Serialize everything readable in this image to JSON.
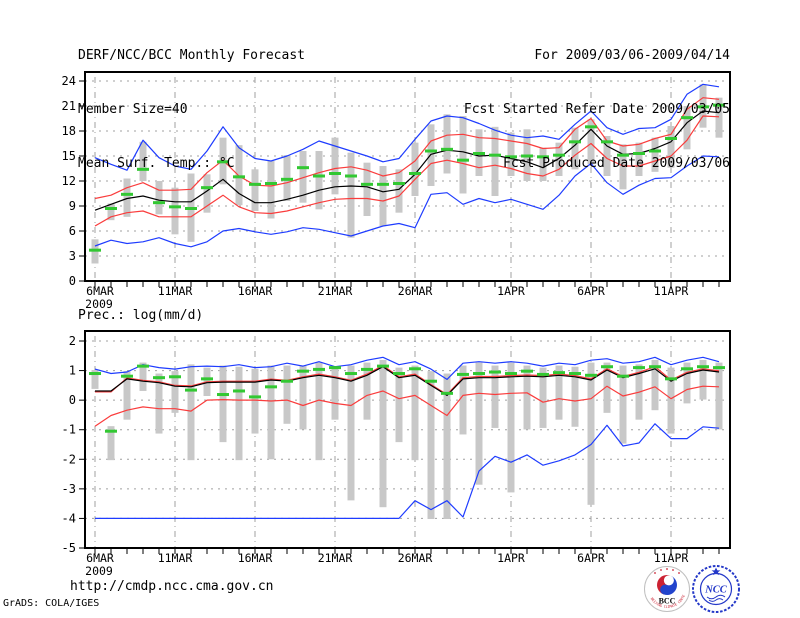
{
  "header": {
    "title": "DERF/NCC/BCC Monthly Forecast",
    "member_size": "Member Size=40",
    "valid_range": "For 2009/03/06-2009/04/14",
    "refer_date": "Fcst Started Refer Date 2009/03/05",
    "produced_date": "Fcst Produced Date 2009/03/06"
  },
  "footer": {
    "url": "http://cmdp.ncc.cma.gov.cn",
    "grads_credit": "GrADS: COLA/IGES",
    "bcc_label": "BCC",
    "bcc_ring_text": "BEIJING CLIMATE CENTER",
    "ncc_label": "NCC"
  },
  "colors": {
    "ensemble_max_min": "#1e3cff",
    "spread_lines": "#fa3c3c",
    "ensemble_mean": "#000000",
    "observation_dash": "#32c832",
    "spread_bar": "#c8c8c8",
    "grid": "#a0a0a0",
    "axis": "#000000",
    "logo_blue": "#2438c8",
    "logo_red": "#cc2233"
  },
  "chart_data": [
    {
      "type": "line",
      "title": "Mean Surf. Temp.: °C",
      "x": [
        "6MAR",
        "7MAR",
        "8MAR",
        "9MAR",
        "10MAR",
        "11MAR",
        "12MAR",
        "13MAR",
        "14MAR",
        "15MAR",
        "16MAR",
        "17MAR",
        "18MAR",
        "19MAR",
        "20MAR",
        "21MAR",
        "22MAR",
        "23MAR",
        "24MAR",
        "25MAR",
        "26MAR",
        "27MAR",
        "28MAR",
        "29MAR",
        "30MAR",
        "31MAR",
        "1APR",
        "2APR",
        "3APR",
        "4APR",
        "5APR",
        "6APR",
        "7APR",
        "8APR",
        "9APR",
        "10APR",
        "11APR",
        "12APR",
        "13APR",
        "14APR"
      ],
      "year_label": "2009",
      "xtick_labels": [
        "6MAR",
        "11MAR",
        "16MAR",
        "21MAR",
        "26MAR",
        "1APR",
        "6APR",
        "11APR"
      ],
      "xtick_indices": [
        0,
        5,
        10,
        15,
        20,
        26,
        31,
        36
      ],
      "ylim": [
        0,
        24
      ],
      "yticks": [
        0,
        3,
        6,
        9,
        12,
        15,
        18,
        21,
        24
      ],
      "grid": true,
      "series": [
        {
          "name": "ensemble-max",
          "color": "#1e3cff",
          "values": [
            14.8,
            14.0,
            13.3,
            16.9,
            14.8,
            13.8,
            13.4,
            15.6,
            18.5,
            16.0,
            14.7,
            14.4,
            15.0,
            15.8,
            16.8,
            16.2,
            15.6,
            15.0,
            14.3,
            14.7,
            17.0,
            19.2,
            19.8,
            19.6,
            18.9,
            18.1,
            17.5,
            17.2,
            17.4,
            17.0,
            18.8,
            20.4,
            18.4,
            17.6,
            18.3,
            18.4,
            19.4,
            22.4,
            23.6,
            23.3
          ]
        },
        {
          "name": "spread-upper",
          "color": "#fa3c3c",
          "values": [
            9.9,
            10.3,
            11.2,
            11.8,
            10.9,
            10.9,
            11.0,
            13.0,
            14.5,
            12.6,
            11.5,
            11.4,
            11.8,
            12.4,
            13.0,
            13.5,
            13.7,
            13.3,
            12.6,
            13.0,
            14.4,
            16.8,
            17.5,
            17.6,
            17.2,
            17.1,
            16.8,
            16.5,
            15.9,
            16.0,
            18.2,
            19.5,
            16.8,
            16.2,
            16.4,
            17.1,
            17.6,
            20.6,
            22.0,
            21.8
          ]
        },
        {
          "name": "spread-lower",
          "color": "#fa3c3c",
          "values": [
            6.6,
            7.7,
            8.2,
            8.4,
            7.7,
            7.7,
            7.7,
            9.0,
            10.3,
            8.9,
            8.2,
            8.1,
            8.4,
            8.9,
            9.4,
            9.8,
            9.9,
            9.9,
            9.6,
            10.2,
            12.2,
            14.1,
            14.5,
            14.1,
            13.6,
            13.9,
            13.5,
            12.9,
            12.6,
            13.4,
            15.1,
            16.5,
            14.7,
            13.8,
            13.8,
            14.4,
            15.0,
            16.9,
            19.8,
            19.7
          ]
        },
        {
          "name": "ensemble-min",
          "color": "#1e3cff",
          "values": [
            4.2,
            4.9,
            4.5,
            4.7,
            5.2,
            4.5,
            4.1,
            4.7,
            6.0,
            6.3,
            5.9,
            5.6,
            5.9,
            6.4,
            6.2,
            5.8,
            5.4,
            6.0,
            6.6,
            6.9,
            6.4,
            10.4,
            10.6,
            9.2,
            9.9,
            9.4,
            9.8,
            9.2,
            8.6,
            10.3,
            12.6,
            14.1,
            11.8,
            10.4,
            11.5,
            12.3,
            12.4,
            13.8,
            15.0,
            14.9
          ]
        },
        {
          "name": "ensemble-mean",
          "color": "#000000",
          "values": [
            8.5,
            9.2,
            9.9,
            10.2,
            9.7,
            9.5,
            9.5,
            10.8,
            12.2,
            10.5,
            9.4,
            9.4,
            9.8,
            10.3,
            10.9,
            11.3,
            11.4,
            11.3,
            10.7,
            11.0,
            12.8,
            15.2,
            15.7,
            15.5,
            15.0,
            15.1,
            14.7,
            14.3,
            13.6,
            14.7,
            16.3,
            18.2,
            16.2,
            15.2,
            15.3,
            15.9,
            16.7,
            19.0,
            20.4,
            20.2
          ]
        },
        {
          "name": "observation",
          "color": "#32c832",
          "marker": "dash",
          "values": [
            3.7,
            8.7,
            10.4,
            13.4,
            9.4,
            8.9,
            8.7,
            11.2,
            14.3,
            12.5,
            11.6,
            11.7,
            12.2,
            13.6,
            12.6,
            12.9,
            12.6,
            11.6,
            11.6,
            11.7,
            12.9,
            15.6,
            15.8,
            14.5,
            15.3,
            15.1,
            14.9,
            15.0,
            14.9,
            15.1,
            16.7,
            18.5,
            16.7,
            15.1,
            15.3,
            15.6,
            17.1,
            19.6,
            20.9,
            21.1
          ]
        }
      ],
      "spread_bars": {
        "color": "#c8c8c8",
        "top": [
          5.0,
          9.3,
          12.3,
          16.7,
          12.0,
          11.2,
          12.9,
          12.8,
          17.2,
          16.3,
          13.4,
          14.4,
          15.1,
          15.6,
          15.6,
          17.2,
          15.4,
          14.2,
          13.8,
          13.4,
          16.6,
          18.8,
          20.0,
          19.8,
          18.2,
          18.5,
          17.8,
          18.2,
          16.0,
          16.6,
          18.4,
          19.4,
          17.4,
          16.4,
          16.6,
          17.2,
          18.6,
          21.0,
          23.6,
          22.0
        ],
        "bottom": [
          2.1,
          7.3,
          7.7,
          12.0,
          8.0,
          5.6,
          4.7,
          8.2,
          11.6,
          9.1,
          8.4,
          7.5,
          9.6,
          9.4,
          8.6,
          10.4,
          5.2,
          7.8,
          6.6,
          8.2,
          10.2,
          11.4,
          12.9,
          10.5,
          12.6,
          10.2,
          12.6,
          12.0,
          12.0,
          12.6,
          13.4,
          14.0,
          12.6,
          11.0,
          12.6,
          13.1,
          13.6,
          15.8,
          18.4,
          17.2
        ]
      }
    },
    {
      "type": "line",
      "title": "Prec.: log(mm/d)",
      "x": [
        "6MAR",
        "7MAR",
        "8MAR",
        "9MAR",
        "10MAR",
        "11MAR",
        "12MAR",
        "13MAR",
        "14MAR",
        "15MAR",
        "16MAR",
        "17MAR",
        "18MAR",
        "19MAR",
        "20MAR",
        "21MAR",
        "22MAR",
        "23MAR",
        "24MAR",
        "25MAR",
        "26MAR",
        "27MAR",
        "28MAR",
        "29MAR",
        "30MAR",
        "31MAR",
        "1APR",
        "2APR",
        "3APR",
        "4APR",
        "5APR",
        "6APR",
        "7APR",
        "8APR",
        "9APR",
        "10APR",
        "11APR",
        "12APR",
        "13APR",
        "14APR"
      ],
      "year_label": "2009",
      "xtick_labels": [
        "6MAR",
        "11MAR",
        "16MAR",
        "21MAR",
        "26MAR",
        "1APR",
        "6APR",
        "11APR"
      ],
      "xtick_indices": [
        0,
        5,
        10,
        15,
        20,
        26,
        31,
        36
      ],
      "ylim": [
        -5,
        2
      ],
      "yticks": [
        -5,
        -4,
        -3,
        -2,
        -1,
        0,
        1,
        2
      ],
      "grid": true,
      "series": [
        {
          "name": "ensemble-max",
          "color": "#1e3cff",
          "values": [
            1.05,
            0.9,
            0.95,
            1.2,
            1.1,
            1.05,
            1.13,
            1.15,
            1.13,
            1.2,
            1.1,
            1.13,
            1.25,
            1.15,
            1.3,
            1.13,
            1.2,
            1.35,
            1.45,
            1.2,
            1.3,
            1.05,
            0.7,
            1.25,
            1.3,
            1.25,
            1.3,
            1.25,
            1.15,
            1.25,
            1.2,
            1.35,
            1.4,
            1.25,
            1.3,
            1.45,
            1.2,
            1.35,
            1.45,
            1.3
          ]
        },
        {
          "name": "spread-upper",
          "color": "#fa3c3c",
          "values": [
            0.28,
            0.28,
            0.75,
            0.67,
            0.62,
            0.5,
            0.48,
            0.62,
            0.64,
            0.64,
            0.64,
            0.71,
            0.67,
            0.79,
            0.88,
            0.79,
            0.67,
            0.88,
            1.17,
            0.79,
            0.88,
            0.53,
            0.19,
            0.76,
            0.8,
            0.8,
            0.83,
            0.85,
            0.83,
            0.88,
            0.83,
            0.72,
            1.06,
            0.8,
            0.94,
            1.13,
            0.68,
            0.94,
            1.06,
            0.99
          ]
        },
        {
          "name": "spread-lower",
          "color": "#fa3c3c",
          "values": [
            -0.88,
            -0.52,
            -0.34,
            -0.23,
            -0.29,
            -0.29,
            -0.37,
            0.0,
            0.02,
            0.0,
            0.0,
            -0.03,
            0.0,
            -0.18,
            0.0,
            -0.11,
            -0.18,
            0.16,
            0.31,
            0.05,
            0.16,
            -0.18,
            -0.52,
            0.16,
            0.23,
            0.19,
            0.23,
            0.25,
            -0.07,
            0.05,
            -0.03,
            0.05,
            0.47,
            0.14,
            0.27,
            0.45,
            0.05,
            0.36,
            0.47,
            0.45
          ]
        },
        {
          "name": "ensemble-min",
          "color": "#1e3cff",
          "values": [
            -4,
            -4,
            -4,
            -4,
            -4,
            -4,
            -4,
            -4,
            -4,
            -4,
            -4,
            -4,
            -4,
            -4,
            -4,
            -4,
            -4,
            -4,
            -4,
            -4,
            -3.4,
            -3.7,
            -3.4,
            -3.95,
            -2.4,
            -1.9,
            -2.1,
            -1.85,
            -2.2,
            -2.05,
            -1.85,
            -1.5,
            -0.85,
            -1.55,
            -1.45,
            -0.8,
            -1.3,
            -1.3,
            -0.9,
            -0.95
          ]
        },
        {
          "name": "ensemble-mean",
          "color": "#000000",
          "values": [
            0.31,
            0.31,
            0.72,
            0.64,
            0.59,
            0.47,
            0.45,
            0.59,
            0.61,
            0.61,
            0.61,
            0.68,
            0.64,
            0.76,
            0.84,
            0.76,
            0.64,
            0.84,
            1.13,
            0.76,
            0.84,
            0.5,
            0.16,
            0.72,
            0.76,
            0.76,
            0.79,
            0.81,
            0.79,
            0.84,
            0.79,
            0.68,
            1.02,
            0.76,
            0.9,
            1.06,
            0.64,
            0.9,
            1.02,
            0.95
          ]
        },
        {
          "name": "observation",
          "color": "#32c832",
          "marker": "dash",
          "values": [
            0.9,
            -1.05,
            0.81,
            1.15,
            0.76,
            0.79,
            0.34,
            0.72,
            0.19,
            0.31,
            0.11,
            0.45,
            0.64,
            0.98,
            1.04,
            1.1,
            0.9,
            1.04,
            1.15,
            0.9,
            1.06,
            0.64,
            0.23,
            0.87,
            0.9,
            0.95,
            0.9,
            0.98,
            0.87,
            0.93,
            0.9,
            0.84,
            1.13,
            0.81,
            1.1,
            1.13,
            0.72,
            1.06,
            1.13,
            1.1
          ]
        }
      ],
      "spread_bars": {
        "color": "#c8c8c8",
        "top": [
          1.02,
          -0.88,
          0.98,
          1.27,
          0.9,
          0.98,
          1.21,
          1.1,
          1.17,
          1.13,
          1.06,
          1.17,
          1.17,
          1.17,
          1.27,
          1.1,
          1.17,
          1.27,
          1.36,
          1.1,
          1.17,
          0.98,
          0.9,
          1.17,
          1.27,
          1.17,
          1.27,
          1.17,
          1.1,
          1.17,
          1.13,
          1.27,
          1.27,
          1.17,
          1.21,
          1.36,
          1.1,
          1.27,
          1.36,
          1.27
        ],
        "bottom": [
          0.38,
          -2.03,
          -0.66,
          0.31,
          -1.13,
          -0.43,
          -2.03,
          0.14,
          -1.42,
          -2.03,
          -1.13,
          -2.0,
          -0.8,
          -0.99,
          -2.03,
          -0.66,
          -3.39,
          -0.66,
          -3.62,
          -1.42,
          -2.03,
          -4.02,
          -4.02,
          -1.16,
          -2.86,
          -0.94,
          -3.12,
          -0.99,
          -0.94,
          -0.66,
          -0.9,
          -3.54,
          -0.43,
          -1.47,
          -0.66,
          -0.34,
          -1.13,
          -0.11,
          0.02,
          -0.99
        ]
      }
    }
  ]
}
